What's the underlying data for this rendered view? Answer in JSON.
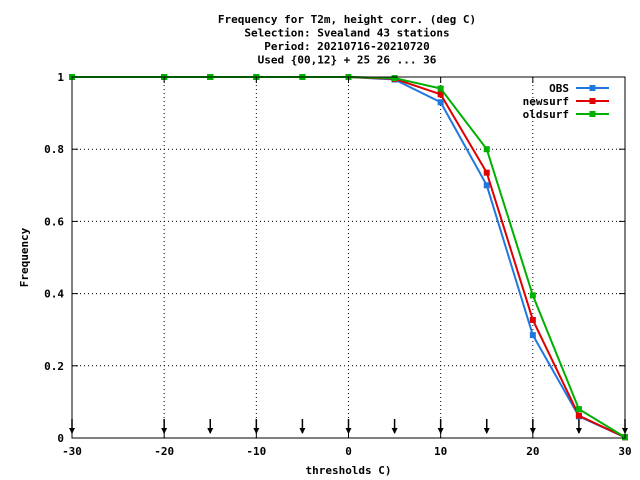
{
  "chart_data": {
    "type": "line",
    "title_lines": [
      "Frequency  for T2m, height corr. (deg C)",
      "Selection: Svealand     43 stations",
      "Period: 20210716-20210720",
      "Used {00,12} + 25 26 ... 36"
    ],
    "xlabel": "thresholds C)",
    "ylabel": "Frequency",
    "xlim": [
      -30,
      30
    ],
    "ylim": [
      0,
      1
    ],
    "xticks": [
      -30,
      -20,
      -10,
      0,
      10,
      20,
      30
    ],
    "yticks": [
      0,
      0.2,
      0.4,
      0.6,
      0.8,
      1
    ],
    "ytick_labels": [
      "0",
      "0.2",
      "0.4",
      "0.6",
      "0.8",
      "1"
    ],
    "grid": true,
    "legend_position": "top-right",
    "x": [
      -30,
      -20,
      -15,
      -10,
      -5,
      0,
      5,
      10,
      15,
      20,
      25,
      30
    ],
    "series": [
      {
        "name": "OBS",
        "color": "#1f77e0",
        "values": [
          1,
          1,
          1,
          1,
          1,
          1,
          0.993,
          0.93,
          0.7,
          0.285,
          0.06,
          0.002
        ]
      },
      {
        "name": "newsurf",
        "color": "#e00000",
        "values": [
          1,
          1,
          1,
          1,
          1,
          1,
          0.995,
          0.952,
          0.735,
          0.327,
          0.062,
          0.002
        ]
      },
      {
        "name": "oldsurf",
        "color": "#00b000",
        "values": [
          1,
          1,
          1,
          1,
          1,
          1,
          0.997,
          0.968,
          0.8,
          0.395,
          0.08,
          0.002
        ]
      }
    ],
    "arrow_markers_x": [
      -30,
      -20,
      -15,
      -10,
      -5,
      0,
      5,
      10,
      15,
      20,
      25,
      30
    ]
  }
}
